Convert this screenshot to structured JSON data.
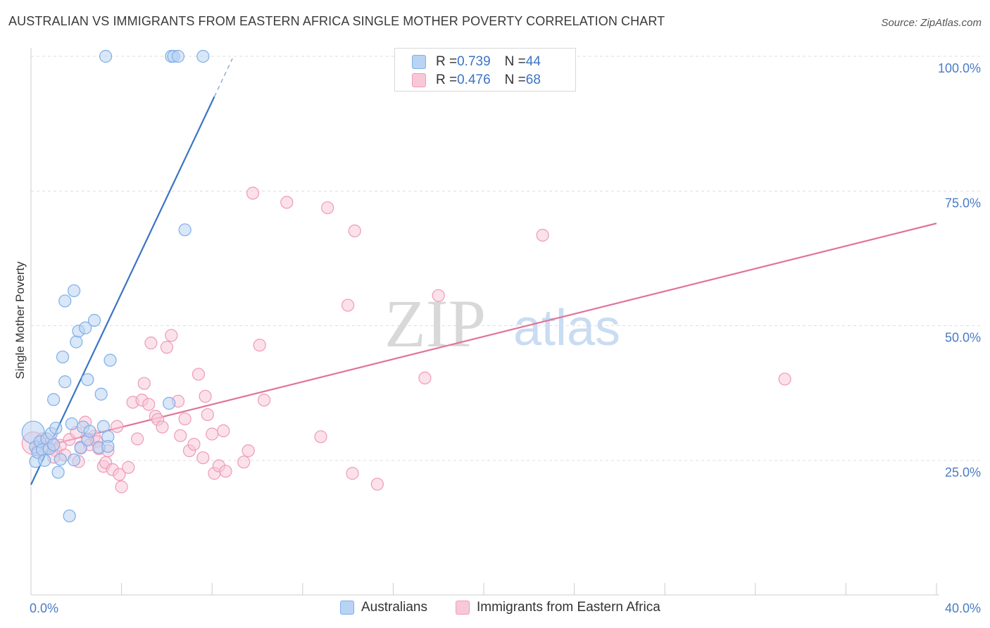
{
  "header": {
    "title": "AUSTRALIAN VS IMMIGRANTS FROM EASTERN AFRICA SINGLE MOTHER POVERTY CORRELATION CHART",
    "source": "Source: ZipAtlas.com"
  },
  "watermark": {
    "zip": "ZIP",
    "atlas": "atlas"
  },
  "colors": {
    "blue": "#3a74c4",
    "blue_fill": "#b9d3f3",
    "blue_stroke": "#7eaee8",
    "pink": "#e0739b",
    "pink_fill": "#f8c8d8",
    "pink_stroke": "#ef9ab8",
    "axis_label": "#4a7cc4",
    "grid": "#dddddd"
  },
  "stats_legend": [
    {
      "label_r": "R = ",
      "r": "0.739",
      "label_n": "N = ",
      "n": "44",
      "series": "Australians"
    },
    {
      "label_r": "R = ",
      "r": "0.476",
      "label_n": "N = ",
      "n": "68",
      "series": "Immigrants from Eastern Africa"
    }
  ],
  "chart_data": {
    "type": "scatter",
    "title": "AUSTRALIAN VS IMMIGRANTS FROM EASTERN AFRICA SINGLE MOTHER POVERTY CORRELATION CHART",
    "xlabel": "",
    "ylabel": "Single Mother Poverty",
    "xlim": [
      0,
      40
    ],
    "ylim": [
      0,
      105
    ],
    "x_tick_labels": [
      "0.0%",
      "40.0%"
    ],
    "y_ticks": [
      25,
      50,
      75,
      100
    ],
    "y_tick_labels": [
      "25.0%",
      "50.0%",
      "75.0%",
      "100.0%"
    ],
    "legend": [
      "Australians",
      "Immigrants from Eastern Africa"
    ],
    "series": [
      {
        "name": "Australians",
        "r": 0.739,
        "n": 44,
        "trend": {
          "x0": 0.0,
          "y0": 20.5,
          "x1": 8.1,
          "y1": 92.5,
          "dashed_to_x": 8.9
        },
        "points": [
          {
            "x": 0.1,
            "y": 30.2,
            "big": true
          },
          {
            "x": 0.2,
            "y": 27.5
          },
          {
            "x": 0.2,
            "y": 24.8
          },
          {
            "x": 0.3,
            "y": 26.5
          },
          {
            "x": 0.4,
            "y": 28.5
          },
          {
            "x": 0.5,
            "y": 27.0
          },
          {
            "x": 0.6,
            "y": 25.0
          },
          {
            "x": 0.7,
            "y": 29.0
          },
          {
            "x": 0.8,
            "y": 27.2
          },
          {
            "x": 0.9,
            "y": 30.0
          },
          {
            "x": 1.0,
            "y": 36.3
          },
          {
            "x": 1.1,
            "y": 31.0
          },
          {
            "x": 1.2,
            "y": 22.8
          },
          {
            "x": 1.3,
            "y": 25.2
          },
          {
            "x": 1.4,
            "y": 44.2
          },
          {
            "x": 1.5,
            "y": 54.6
          },
          {
            "x": 1.5,
            "y": 39.6
          },
          {
            "x": 1.7,
            "y": 14.7
          },
          {
            "x": 1.8,
            "y": 31.8
          },
          {
            "x": 1.9,
            "y": 25.1
          },
          {
            "x": 1.9,
            "y": 56.5
          },
          {
            "x": 2.0,
            "y": 47.0
          },
          {
            "x": 2.1,
            "y": 49.0
          },
          {
            "x": 2.2,
            "y": 27.3
          },
          {
            "x": 2.3,
            "y": 31.2
          },
          {
            "x": 2.4,
            "y": 49.6
          },
          {
            "x": 2.5,
            "y": 40.0
          },
          {
            "x": 2.5,
            "y": 28.8
          },
          {
            "x": 2.6,
            "y": 30.4
          },
          {
            "x": 2.8,
            "y": 51.0
          },
          {
            "x": 3.0,
            "y": 27.4
          },
          {
            "x": 3.1,
            "y": 37.3
          },
          {
            "x": 3.2,
            "y": 31.3
          },
          {
            "x": 3.3,
            "y": 100.0
          },
          {
            "x": 3.4,
            "y": 29.4
          },
          {
            "x": 3.4,
            "y": 27.6
          },
          {
            "x": 3.5,
            "y": 43.6
          },
          {
            "x": 6.1,
            "y": 35.6
          },
          {
            "x": 6.2,
            "y": 100.0
          },
          {
            "x": 6.3,
            "y": 100.0
          },
          {
            "x": 6.5,
            "y": 100.0
          },
          {
            "x": 6.8,
            "y": 67.8
          },
          {
            "x": 7.6,
            "y": 100.0
          },
          {
            "x": 1.0,
            "y": 27.9
          }
        ]
      },
      {
        "name": "Immigrants from Eastern Africa",
        "r": 0.476,
        "n": 68,
        "trend": {
          "x0": 0.0,
          "y0": 27.0,
          "x1": 40.0,
          "y1": 69.0
        },
        "points": [
          {
            "x": 0.1,
            "y": 28.2,
            "big": true
          },
          {
            "x": 0.3,
            "y": 27.0
          },
          {
            "x": 0.5,
            "y": 29.0
          },
          {
            "x": 0.7,
            "y": 27.5
          },
          {
            "x": 0.9,
            "y": 28.5
          },
          {
            "x": 1.1,
            "y": 26.8
          },
          {
            "x": 1.3,
            "y": 27.8
          },
          {
            "x": 1.5,
            "y": 26.0
          },
          {
            "x": 1.7,
            "y": 28.9
          },
          {
            "x": 2.0,
            "y": 30.2
          },
          {
            "x": 2.1,
            "y": 24.8
          },
          {
            "x": 2.2,
            "y": 27.5
          },
          {
            "x": 2.4,
            "y": 32.1
          },
          {
            "x": 2.5,
            "y": 29.0
          },
          {
            "x": 2.6,
            "y": 27.9
          },
          {
            "x": 2.8,
            "y": 29.5
          },
          {
            "x": 2.9,
            "y": 28.5
          },
          {
            "x": 3.0,
            "y": 27.2
          },
          {
            "x": 3.2,
            "y": 23.9
          },
          {
            "x": 3.3,
            "y": 24.6
          },
          {
            "x": 3.4,
            "y": 26.8
          },
          {
            "x": 3.6,
            "y": 23.3
          },
          {
            "x": 3.8,
            "y": 31.3
          },
          {
            "x": 3.9,
            "y": 22.4
          },
          {
            "x": 4.0,
            "y": 20.1
          },
          {
            "x": 4.3,
            "y": 23.7
          },
          {
            "x": 4.5,
            "y": 35.8
          },
          {
            "x": 4.7,
            "y": 29.0
          },
          {
            "x": 4.9,
            "y": 36.2
          },
          {
            "x": 5.0,
            "y": 39.3
          },
          {
            "x": 5.2,
            "y": 35.4
          },
          {
            "x": 5.3,
            "y": 46.8
          },
          {
            "x": 5.5,
            "y": 33.2
          },
          {
            "x": 5.6,
            "y": 32.6
          },
          {
            "x": 5.8,
            "y": 31.2
          },
          {
            "x": 6.0,
            "y": 46.0
          },
          {
            "x": 6.2,
            "y": 48.2
          },
          {
            "x": 6.5,
            "y": 36.0
          },
          {
            "x": 6.6,
            "y": 29.6
          },
          {
            "x": 6.8,
            "y": 32.7
          },
          {
            "x": 7.0,
            "y": 26.8
          },
          {
            "x": 7.2,
            "y": 28.0
          },
          {
            "x": 7.4,
            "y": 41.0
          },
          {
            "x": 7.6,
            "y": 25.5
          },
          {
            "x": 7.7,
            "y": 36.9
          },
          {
            "x": 7.8,
            "y": 33.5
          },
          {
            "x": 8.0,
            "y": 29.9
          },
          {
            "x": 8.1,
            "y": 22.6
          },
          {
            "x": 8.3,
            "y": 24.0
          },
          {
            "x": 8.5,
            "y": 30.5
          },
          {
            "x": 8.6,
            "y": 23.0
          },
          {
            "x": 9.4,
            "y": 24.7
          },
          {
            "x": 9.6,
            "y": 26.8
          },
          {
            "x": 9.8,
            "y": 74.6
          },
          {
            "x": 10.1,
            "y": 46.4
          },
          {
            "x": 10.3,
            "y": 36.2
          },
          {
            "x": 11.3,
            "y": 72.9
          },
          {
            "x": 12.8,
            "y": 29.4
          },
          {
            "x": 13.1,
            "y": 71.9
          },
          {
            "x": 14.0,
            "y": 53.8
          },
          {
            "x": 14.2,
            "y": 22.6
          },
          {
            "x": 14.3,
            "y": 67.6
          },
          {
            "x": 15.3,
            "y": 20.6
          },
          {
            "x": 17.4,
            "y": 40.3
          },
          {
            "x": 18.0,
            "y": 55.6
          },
          {
            "x": 22.6,
            "y": 66.8
          },
          {
            "x": 33.3,
            "y": 40.1
          },
          {
            "x": 1.0,
            "y": 25.6
          }
        ]
      }
    ]
  }
}
